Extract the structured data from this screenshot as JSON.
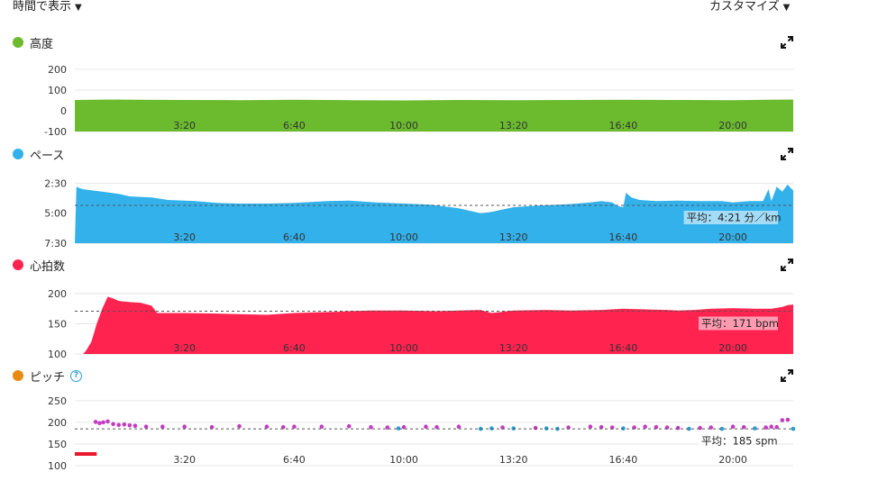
{
  "header": {
    "time_toggle_label": "時間で表示",
    "customize_label": "カスタマイズ",
    "caret": "▼"
  },
  "colors": {
    "elevation": "#6cbb2f",
    "pace": "#33b1ea",
    "heart_rate": "#ff2350",
    "cadence_dot_orange": "#e88b12",
    "cadence_points": "#c43bc3",
    "cadence_points_alt": "#2a9fd6",
    "cadence_low": "#e8182c"
  },
  "chart_data": [
    {
      "id": "elevation",
      "type": "area",
      "title": "高度",
      "xlabel": "",
      "ylabel": "",
      "x_ticks": [
        "3:20",
        "6:40",
        "10:00",
        "13:20",
        "16:40",
        "20:00"
      ],
      "x_tick_values": [
        200,
        400,
        600,
        800,
        1000,
        1200
      ],
      "xlim": [
        0,
        1310
      ],
      "y_ticks": [
        "200",
        "100",
        "0",
        "-100"
      ],
      "y_tick_values": [
        200,
        100,
        0,
        -100
      ],
      "ylim": [
        -100,
        230
      ],
      "x": [
        0,
        60,
        120,
        200,
        300,
        400,
        500,
        600,
        700,
        800,
        900,
        1000,
        1100,
        1200,
        1260,
        1310
      ],
      "values": [
        52,
        54,
        53,
        52,
        51,
        53,
        51,
        50,
        52,
        51,
        52,
        53,
        52,
        51,
        53,
        54
      ]
    },
    {
      "id": "pace",
      "type": "area",
      "title": "ペース",
      "xlabel": "",
      "ylabel": "",
      "x_ticks": [
        "3:20",
        "6:40",
        "10:00",
        "13:20",
        "16:40",
        "20:00"
      ],
      "x_tick_values": [
        200,
        400,
        600,
        800,
        1000,
        1200
      ],
      "xlim": [
        0,
        1310
      ],
      "y_ticks": [
        "2:30",
        "5:00",
        "7:30"
      ],
      "y_tick_values": [
        2.5,
        5.0,
        7.5
      ],
      "ylim": [
        7.5,
        1.8
      ],
      "inverted": true,
      "average_value": 4.35,
      "average_label": "平均：4:21 分／km",
      "x": [
        0,
        3,
        8,
        15,
        30,
        50,
        80,
        100,
        140,
        170,
        220,
        260,
        300,
        350,
        400,
        460,
        500,
        550,
        600,
        650,
        700,
        740,
        760,
        800,
        850,
        900,
        940,
        960,
        980,
        990,
        1000,
        1005,
        1015,
        1030,
        1060,
        1100,
        1140,
        1180,
        1200,
        1230,
        1255,
        1265,
        1270,
        1280,
        1290,
        1300,
        1305,
        1310
      ],
      "values": [
        7.5,
        2.8,
        2.9,
        3.0,
        3.1,
        3.2,
        3.4,
        3.6,
        3.7,
        3.9,
        4.0,
        4.15,
        4.2,
        4.2,
        4.15,
        4.0,
        3.95,
        4.1,
        4.2,
        4.3,
        4.6,
        5.0,
        4.9,
        4.5,
        4.35,
        4.25,
        4.1,
        4.0,
        4.1,
        4.4,
        4.5,
        3.3,
        3.7,
        3.9,
        4.0,
        3.95,
        4.0,
        4.0,
        4.1,
        4.0,
        4.0,
        3.0,
        4.0,
        2.8,
        3.2,
        2.6,
        2.9,
        3.1
      ]
    },
    {
      "id": "heart_rate",
      "type": "area",
      "title": "心拍数",
      "xlabel": "",
      "ylabel": "",
      "x_ticks": [
        "3:20",
        "6:40",
        "10:00",
        "13:20",
        "16:40",
        "20:00"
      ],
      "x_tick_values": [
        200,
        400,
        600,
        800,
        1000,
        1200
      ],
      "xlim": [
        0,
        1310
      ],
      "y_ticks": [
        "200",
        "150",
        "100"
      ],
      "y_tick_values": [
        200,
        150,
        100
      ],
      "ylim": [
        100,
        215
      ],
      "average_value": 171,
      "average_label": "平均：171 bpm",
      "x": [
        0,
        15,
        20,
        30,
        40,
        50,
        60,
        70,
        80,
        100,
        120,
        140,
        150,
        160,
        200,
        260,
        300,
        350,
        400,
        440,
        480,
        500,
        540,
        600,
        660,
        700,
        740,
        760,
        780,
        800,
        860,
        900,
        960,
        1000,
        1040,
        1080,
        1100,
        1130,
        1160,
        1200,
        1240,
        1270,
        1290,
        1300,
        1310
      ],
      "values": [
        100,
        100,
        105,
        120,
        150,
        175,
        195,
        192,
        188,
        186,
        185,
        180,
        168,
        168,
        168,
        167,
        166,
        165,
        168,
        169,
        170,
        171,
        172,
        172,
        171,
        172,
        173,
        168,
        170,
        172,
        173,
        172,
        173,
        175,
        174,
        173,
        172,
        173,
        175,
        176,
        175,
        175,
        178,
        181,
        182
      ]
    },
    {
      "id": "cadence",
      "type": "scatter",
      "title": "ピッチ",
      "help_icon": "?",
      "xlabel": "",
      "ylabel": "",
      "x_ticks": [
        "3:20",
        "6:40",
        "10:00",
        "13:20",
        "16:40",
        "20:00"
      ],
      "x_tick_values": [
        200,
        400,
        600,
        800,
        1000,
        1200
      ],
      "xlim": [
        0,
        1310
      ],
      "y_ticks": [
        "250",
        "200",
        "150",
        "100"
      ],
      "y_tick_values": [
        250,
        200,
        150,
        100
      ],
      "ylim": [
        100,
        260
      ],
      "average_value": 185,
      "average_label": "平均：185 spm",
      "low_segment": {
        "x": [
          0,
          40
        ],
        "value": 127
      },
      "x": [
        38,
        45,
        52,
        60,
        70,
        80,
        90,
        100,
        110,
        130,
        160,
        200,
        250,
        300,
        350,
        380,
        400,
        450,
        500,
        540,
        570,
        590,
        600,
        640,
        660,
        700,
        740,
        760,
        780,
        800,
        840,
        860,
        880,
        900,
        940,
        960,
        980,
        1000,
        1020,
        1040,
        1060,
        1080,
        1100,
        1120,
        1140,
        1160,
        1180,
        1200,
        1220,
        1240,
        1260,
        1270,
        1280,
        1290,
        1300,
        1310
      ],
      "values": [
        201,
        198,
        200,
        202,
        196,
        194,
        195,
        193,
        192,
        190,
        190,
        190,
        189,
        191,
        190,
        189,
        190,
        190,
        191,
        189,
        188,
        186,
        189,
        190,
        189,
        190,
        185,
        186,
        188,
        186,
        187,
        186,
        185,
        188,
        190,
        189,
        188,
        186,
        188,
        190,
        189,
        188,
        187,
        185,
        187,
        188,
        185,
        190,
        189,
        186,
        188,
        190,
        189,
        205,
        206,
        185
      ]
    }
  ]
}
